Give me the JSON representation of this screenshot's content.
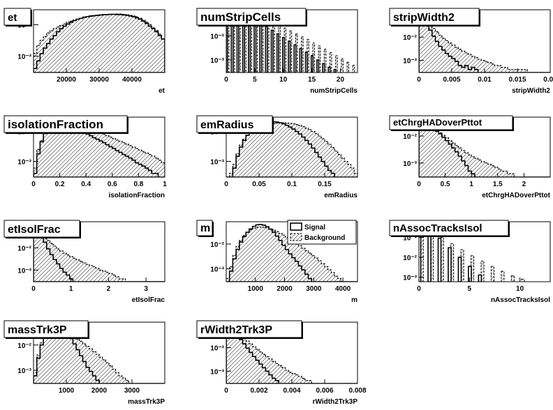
{
  "legend": {
    "signal_label": "Signal",
    "background_label": "Background"
  },
  "colors": {
    "line": "#000000",
    "fill": "#ffffff",
    "hatch": "#000000"
  },
  "chart_data": [
    {
      "type": "histogram",
      "title": "et",
      "xlabel": "et",
      "xlim": [
        10000,
        50000
      ],
      "ylim_log": [
        0.0003,
        0.03
      ],
      "log_y": true,
      "xticks": [
        20000,
        30000,
        40000
      ],
      "xtick_labels": [
        "20000",
        "30000",
        "40000"
      ],
      "yticks": [
        0.01,
        0.001
      ],
      "ytick_labels": [
        "10⁻²",
        "10⁻³"
      ],
      "bins": 40,
      "background": [
        0.0012,
        0.0022,
        0.0032,
        0.0042,
        0.0055,
        0.0065,
        0.0075,
        0.0085,
        0.0095,
        0.0105,
        0.012,
        0.013,
        0.014,
        0.015,
        0.016,
        0.017,
        0.018,
        0.0185,
        0.019,
        0.0195,
        0.02,
        0.0205,
        0.021,
        0.021,
        0.0215,
        0.022,
        0.022,
        0.0215,
        0.021,
        0.02,
        0.019,
        0.018,
        0.016,
        0.014,
        0.012,
        0.01,
        0.008,
        0.0065,
        0.005,
        0.0035
      ],
      "signal": [
        0.0004,
        0.0007,
        0.0012,
        0.0018,
        0.0025,
        0.0035,
        0.0045,
        0.006,
        0.0075,
        0.009,
        0.0105,
        0.012,
        0.0135,
        0.015,
        0.016,
        0.0175,
        0.018,
        0.019,
        0.0195,
        0.02,
        0.0205,
        0.021,
        0.021,
        0.0215,
        0.0215,
        0.021,
        0.021,
        0.0205,
        0.02,
        0.019,
        0.018,
        0.0165,
        0.015,
        0.013,
        0.011,
        0.009,
        0.0075,
        0.006,
        0.0045,
        0.0035
      ]
    },
    {
      "type": "histogram",
      "title": "numStripCells",
      "xlabel": "numStripCells",
      "xlim": [
        0,
        23
      ],
      "ylim_log": [
        0.0003,
        0.12
      ],
      "log_y": true,
      "xticks": [
        0,
        5,
        10,
        15,
        20
      ],
      "xtick_labels": [
        "0",
        "5",
        "10",
        "15",
        "20"
      ],
      "yticks": [
        0.1,
        0.01,
        0.001
      ],
      "ytick_labels": [
        "10⁻¹",
        "10⁻²",
        "10⁻³"
      ],
      "discrete": true,
      "x": [
        0,
        1,
        2,
        3,
        4,
        5,
        6,
        7,
        8,
        9,
        10,
        11,
        12,
        13,
        14,
        15,
        16,
        17,
        18,
        19,
        20,
        21,
        22
      ],
      "background": [
        0.13,
        0.12,
        0.11,
        0.1,
        0.085,
        0.07,
        0.055,
        0.045,
        0.035,
        0.027,
        0.021,
        0.016,
        0.012,
        0.009,
        0.007,
        0.005,
        0.0038,
        0.0028,
        0.002,
        0.0015,
        0.0011,
        0.0008,
        0.0006
      ],
      "signal": [
        0.13,
        0.12,
        0.1,
        0.08,
        0.06,
        0.045,
        0.033,
        0.024,
        0.017,
        0.012,
        0.0085,
        0.006,
        0.0042,
        0.003,
        0.0021,
        0.0015,
        0.001,
        0.0007,
        0.0005,
        0.0004,
        0.0003,
        0.0003,
        0.0003
      ]
    },
    {
      "type": "histogram",
      "title": "stripWidth2",
      "xlabel": "stripWidth2",
      "xlim": [
        0,
        0.02
      ],
      "ylim_log": [
        0.0003,
        0.15
      ],
      "log_y": true,
      "xticks": [
        0,
        0.005,
        0.01,
        0.015,
        0.02
      ],
      "xtick_labels": [
        "0",
        "0.005",
        "0.01",
        "0.015",
        "0.02"
      ],
      "yticks": [
        0.1,
        0.01,
        0.001
      ],
      "ytick_labels": [
        "10⁻¹",
        "10⁻²",
        "10⁻³"
      ],
      "bins": 40,
      "background": [
        0.14,
        0.09,
        0.055,
        0.035,
        0.024,
        0.017,
        0.012,
        0.009,
        0.007,
        0.0055,
        0.0045,
        0.0036,
        0.003,
        0.0025,
        0.0021,
        0.0018,
        0.0015,
        0.0013,
        0.0011,
        0.001,
        0.0009,
        0.0008,
        0.0007,
        0.0006,
        0.0006,
        0.0005,
        0.0005,
        0.0004,
        0.0004,
        0.0004,
        0.0004,
        0.0004,
        0.0004,
        0.0003,
        0.0003,
        0.0003,
        0.0003,
        0.0003,
        0.0003,
        0.0003
      ],
      "signal": [
        0.13,
        0.07,
        0.038,
        0.02,
        0.011,
        0.0065,
        0.004,
        0.0028,
        0.002,
        0.0015,
        0.0012,
        0.0009,
        0.0006,
        0.0005,
        0.0006,
        0.0004,
        0.0005,
        0.0004,
        0.0003,
        0.0003,
        0.0003,
        0.0003,
        0.0003,
        0.0003,
        0.0003,
        0.0003,
        0.0003,
        0.0003,
        0.0003,
        0.0003,
        0.0003,
        0.0003,
        0.0003,
        0.0003,
        0.0003,
        0.0003,
        0.0003,
        0.0003,
        0.0003,
        0.0003
      ]
    },
    {
      "type": "histogram",
      "title": "isolationFraction",
      "xlabel": "isolationFraction",
      "xlim": [
        0,
        1
      ],
      "ylim_log": [
        0.0003,
        0.03
      ],
      "log_y": true,
      "xticks": [
        0,
        0.2,
        0.4,
        0.6,
        0.8,
        1
      ],
      "xtick_labels": [
        "0",
        "0.2",
        "0.4",
        "0.6",
        "0.8",
        "1"
      ],
      "yticks": [
        0.01,
        0.001
      ],
      "ytick_labels": [
        "10⁻²",
        "10⁻³"
      ],
      "bins": 40,
      "background": [
        0.0006,
        0.0025,
        0.005,
        0.0085,
        0.012,
        0.015,
        0.017,
        0.018,
        0.019,
        0.019,
        0.0185,
        0.018,
        0.017,
        0.016,
        0.015,
        0.014,
        0.013,
        0.012,
        0.011,
        0.0098,
        0.0088,
        0.008,
        0.0072,
        0.0065,
        0.0058,
        0.0052,
        0.0047,
        0.0042,
        0.0038,
        0.0034,
        0.003,
        0.0027,
        0.0024,
        0.0021,
        0.0019,
        0.0017,
        0.0015,
        0.0013,
        0.0011,
        0.0009
      ],
      "signal": [
        0.0004,
        0.0018,
        0.0045,
        0.0085,
        0.013,
        0.017,
        0.02,
        0.021,
        0.021,
        0.02,
        0.019,
        0.017,
        0.015,
        0.013,
        0.011,
        0.0095,
        0.0082,
        0.0072,
        0.0062,
        0.0055,
        0.0048,
        0.0042,
        0.0036,
        0.0031,
        0.0027,
        0.0023,
        0.002,
        0.0017,
        0.0015,
        0.0013,
        0.0011,
        0.0009,
        0.0008,
        0.0007,
        0.0006,
        0.0005,
        0.0004,
        0.0004,
        0.0003,
        0.0003
      ]
    },
    {
      "type": "histogram",
      "title": "emRadius",
      "xlabel": "emRadius",
      "xlim": [
        0,
        0.2
      ],
      "ylim_log": [
        0.0003,
        0.03
      ],
      "log_y": true,
      "xticks": [
        0,
        0.05,
        0.1,
        0.15
      ],
      "xtick_labels": [
        "0",
        "0.05",
        "0.1",
        "0.15"
      ],
      "yticks": [
        0.01,
        0.001
      ],
      "ytick_labels": [
        "10⁻²",
        "10⁻³"
      ],
      "bins": 40,
      "background": [
        0.0003,
        0.0004,
        0.0008,
        0.0018,
        0.0035,
        0.0055,
        0.0075,
        0.0095,
        0.0115,
        0.013,
        0.0145,
        0.016,
        0.017,
        0.018,
        0.0185,
        0.019,
        0.0195,
        0.0195,
        0.019,
        0.0185,
        0.018,
        0.017,
        0.016,
        0.0145,
        0.013,
        0.0115,
        0.01,
        0.0085,
        0.007,
        0.0057,
        0.0046,
        0.0037,
        0.0029,
        0.0022,
        0.0017,
        0.0013,
        0.001,
        0.0008,
        0.0006,
        0.0004
      ],
      "signal": [
        0.0003,
        0.0003,
        0.0006,
        0.0015,
        0.003,
        0.005,
        0.0075,
        0.01,
        0.0125,
        0.015,
        0.017,
        0.019,
        0.02,
        0.021,
        0.021,
        0.0205,
        0.0195,
        0.018,
        0.016,
        0.014,
        0.012,
        0.01,
        0.0082,
        0.0065,
        0.005,
        0.0038,
        0.0028,
        0.002,
        0.0014,
        0.001,
        0.0007,
        0.0005,
        0.0004,
        0.0003,
        0.0003,
        0.0003,
        0.0003,
        0.0003,
        0.0003,
        0.0003
      ]
    },
    {
      "type": "histogram",
      "title": "etChrgHADoverPttot",
      "xlabel": "etChrgHADoverPttot",
      "xlim": [
        0,
        2.5
      ],
      "ylim_log": [
        0.0003,
        0.05
      ],
      "log_y": true,
      "xticks": [
        0,
        0.5,
        1,
        1.5,
        2
      ],
      "xtick_labels": [
        "0",
        "0.5",
        "1",
        "1.5",
        "2"
      ],
      "yticks": [
        0.01,
        0.001
      ],
      "ytick_labels": [
        "10⁻²",
        "10⁻³"
      ],
      "bins": 40,
      "background": [
        0.03,
        0.028,
        0.025,
        0.022,
        0.019,
        0.016,
        0.013,
        0.0105,
        0.0085,
        0.0068,
        0.0055,
        0.0044,
        0.0036,
        0.0029,
        0.0024,
        0.002,
        0.0017,
        0.0015,
        0.0013,
        0.0011,
        0.001,
        0.0009,
        0.0008,
        0.0007,
        0.0006,
        0.0005,
        0.0005,
        0.0004,
        0.0004,
        0.0003,
        0.0003,
        0.0003,
        0.0003,
        0.0003,
        0.0003,
        0.0003,
        0.0003,
        0.0003,
        0.0003,
        0.0003
      ],
      "signal": [
        0.032,
        0.03,
        0.027,
        0.023,
        0.019,
        0.015,
        0.012,
        0.009,
        0.0068,
        0.005,
        0.0036,
        0.0026,
        0.0018,
        0.0012,
        0.0008,
        0.0005,
        0.0004,
        0.0003,
        0.0003,
        0.0003,
        0.0003,
        0.0003,
        0.0003,
        0.0003,
        0.0003,
        0.0003,
        0.0003,
        0.0003,
        0.0003,
        0.0003,
        0.0003,
        0.0003,
        0.0003,
        0.0003,
        0.0003,
        0.0003,
        0.0003,
        0.0003,
        0.0003,
        0.0003
      ]
    },
    {
      "type": "histogram",
      "title": "etIsolFrac",
      "xlabel": "etIsolFrac",
      "xlim": [
        0,
        3.5
      ],
      "ylim_log": [
        0.0003,
        0.15
      ],
      "log_y": true,
      "xticks": [
        0,
        1,
        2,
        3
      ],
      "xtick_labels": [
        "0",
        "1",
        "2",
        "3"
      ],
      "yticks": [
        0.1,
        0.01,
        0.001
      ],
      "ytick_labels": [
        "10⁻¹",
        "10⁻²",
        "10⁻³"
      ],
      "bins": 40,
      "background": [
        0.12,
        0.075,
        0.048,
        0.032,
        0.022,
        0.016,
        0.012,
        0.009,
        0.0072,
        0.0058,
        0.0048,
        0.004,
        0.0034,
        0.0029,
        0.0025,
        0.0021,
        0.0018,
        0.0016,
        0.0014,
        0.0012,
        0.001,
        0.0009,
        0.0008,
        0.0007,
        0.0006,
        0.0005,
        0.0004,
        0.0004,
        0.0003,
        0.0003,
        0.0003,
        0.0003,
        0.0003,
        0.0003,
        0.0003,
        0.0003,
        0.0003,
        0.0003,
        0.0003,
        0.0003
      ],
      "signal": [
        0.13,
        0.07,
        0.035,
        0.018,
        0.009,
        0.005,
        0.003,
        0.0019,
        0.0012,
        0.0008,
        0.0006,
        0.0004,
        0.0003,
        0.0003,
        0.0003,
        0.0003,
        0.0003,
        0.0003,
        0.0003,
        0.0003,
        0.0003,
        0.0003,
        0.0003,
        0.0003,
        0.0003,
        0.0003,
        0.0003,
        0.0003,
        0.0003,
        0.0003,
        0.0003,
        0.0003,
        0.0003,
        0.0003,
        0.0003,
        0.0003,
        0.0003,
        0.0003,
        0.0003,
        0.0003
      ]
    },
    {
      "type": "histogram",
      "title": "m",
      "xlabel": "m",
      "xlim": [
        0,
        4500
      ],
      "ylim_log": [
        0.0003,
        0.08
      ],
      "log_y": true,
      "xticks": [
        1000,
        2000,
        3000,
        4000
      ],
      "xtick_labels": [
        "1000",
        "2000",
        "3000",
        "4000"
      ],
      "yticks": [
        0.01,
        0.001
      ],
      "ytick_labels": [
        "10⁻²",
        "10⁻³"
      ],
      "bins": 40,
      "legend": "top-right",
      "background": [
        0.0004,
        0.0012,
        0.0035,
        0.008,
        0.014,
        0.022,
        0.03,
        0.038,
        0.044,
        0.048,
        0.049,
        0.048,
        0.045,
        0.041,
        0.037,
        0.032,
        0.027,
        0.023,
        0.019,
        0.016,
        0.013,
        0.0105,
        0.0085,
        0.0068,
        0.0054,
        0.0043,
        0.0034,
        0.0027,
        0.0021,
        0.0016,
        0.0012,
        0.0009,
        0.0007,
        0.0005,
        0.0004,
        0.0003,
        0.0003,
        0.0003,
        0.0003,
        0.0003
      ],
      "signal": [
        0.0003,
        0.0008,
        0.0025,
        0.006,
        0.012,
        0.02,
        0.03,
        0.041,
        0.052,
        0.06,
        0.062,
        0.058,
        0.05,
        0.04,
        0.03,
        0.021,
        0.014,
        0.009,
        0.006,
        0.004,
        0.0028,
        0.002,
        0.0013,
        0.0009,
        0.0006,
        0.0004,
        0.0003,
        0.0003,
        0.0003,
        0.0003,
        0.0003,
        0.0003,
        0.0003,
        0.0003,
        0.0003,
        0.0003,
        0.0003,
        0.0003,
        0.0003,
        0.0003
      ]
    },
    {
      "type": "histogram",
      "title": "nAssocTracksIsol",
      "xlabel": "nAssocTracksIsol",
      "xlim": [
        0,
        13
      ],
      "ylim_log": [
        0.0006,
        0.6
      ],
      "log_y": true,
      "xticks": [
        0,
        5,
        10
      ],
      "xtick_labels": [
        "0",
        "5",
        "10"
      ],
      "yticks": [
        0.1,
        0.01,
        0.001
      ],
      "ytick_labels": [
        "10⁻¹",
        "10⁻²",
        "10⁻³"
      ],
      "discrete": true,
      "x": [
        0,
        1,
        2,
        3,
        4,
        5,
        6,
        7,
        8,
        9,
        10,
        11,
        12
      ],
      "background": [
        0.5,
        0.22,
        0.1,
        0.048,
        0.024,
        0.012,
        0.0065,
        0.0035,
        0.002,
        0.0012,
        0.0008,
        0.0006,
        0.0006
      ],
      "signal": [
        0.6,
        0.26,
        0.09,
        0.03,
        0.01,
        0.0035,
        0.0013,
        0.0006,
        0.0006,
        0.0006,
        0.0006,
        0.0006,
        0.0006
      ]
    },
    {
      "type": "histogram",
      "title": "massTrk3P",
      "xlabel": "massTrk3P",
      "xlim": [
        0,
        4000
      ],
      "ylim_log": [
        0.0003,
        0.08
      ],
      "log_y": true,
      "xticks": [
        1000,
        2000,
        3000
      ],
      "xtick_labels": [
        "1000",
        "2000",
        "3000"
      ],
      "yticks": [
        0.01,
        0.001
      ],
      "ytick_labels": [
        "10⁻²",
        "10⁻³"
      ],
      "bins": 40,
      "background": [
        0.0008,
        0.004,
        0.012,
        0.024,
        0.034,
        0.04,
        0.042,
        0.041,
        0.038,
        0.034,
        0.029,
        0.025,
        0.021,
        0.017,
        0.014,
        0.011,
        0.0088,
        0.007,
        0.0055,
        0.0043,
        0.0033,
        0.0026,
        0.002,
        0.0015,
        0.0011,
        0.0008,
        0.0006,
        0.0005,
        0.0004,
        0.0003,
        0.0003,
        0.0003,
        0.0003,
        0.0003,
        0.0003,
        0.0003,
        0.0003,
        0.0003,
        0.0003,
        0.0003
      ],
      "signal": [
        0.0006,
        0.003,
        0.01,
        0.022,
        0.036,
        0.048,
        0.055,
        0.056,
        0.05,
        0.04,
        0.028,
        0.018,
        0.011,
        0.0065,
        0.0038,
        0.0022,
        0.0013,
        0.0009,
        0.0006,
        0.0004,
        0.0003,
        0.0003,
        0.0003,
        0.0003,
        0.0003,
        0.0003,
        0.0003,
        0.0003,
        0.0003,
        0.0003,
        0.0003,
        0.0003,
        0.0003,
        0.0003,
        0.0003,
        0.0003,
        0.0003,
        0.0003,
        0.0003,
        0.0003
      ]
    },
    {
      "type": "histogram",
      "title": "rWidth2Trk3P",
      "xlabel": "rWidth2Trk3P",
      "xlim": [
        0,
        0.008
      ],
      "ylim_log": [
        0.0003,
        0.12
      ],
      "log_y": true,
      "xticks": [
        0,
        0.002,
        0.004,
        0.006,
        0.008
      ],
      "xtick_labels": [
        "0",
        "0.002",
        "0.004",
        "0.006",
        "0.008"
      ],
      "yticks": [
        0.1,
        0.01,
        0.001
      ],
      "ytick_labels": [
        "10⁻¹",
        "10⁻²",
        "10⁻³"
      ],
      "bins": 40,
      "background": [
        0.11,
        0.08,
        0.058,
        0.043,
        0.033,
        0.025,
        0.019,
        0.0145,
        0.011,
        0.0085,
        0.0066,
        0.0052,
        0.0041,
        0.0033,
        0.0026,
        0.0021,
        0.0017,
        0.0014,
        0.0011,
        0.0009,
        0.0008,
        0.0007,
        0.0006,
        0.0005,
        0.0004,
        0.0004,
        0.0003,
        0.0003,
        0.0003,
        0.0003,
        0.0003,
        0.0003,
        0.0003,
        0.0003,
        0.0003,
        0.0003,
        0.0003,
        0.0003,
        0.0003,
        0.0003
      ],
      "signal": [
        0.12,
        0.08,
        0.052,
        0.034,
        0.022,
        0.0145,
        0.0095,
        0.0063,
        0.0042,
        0.0029,
        0.002,
        0.0014,
        0.001,
        0.0007,
        0.0005,
        0.0004,
        0.0003,
        0.0003,
        0.0003,
        0.0003,
        0.0003,
        0.0003,
        0.0003,
        0.0003,
        0.0003,
        0.0003,
        0.0003,
        0.0003,
        0.0003,
        0.0003,
        0.0003,
        0.0003,
        0.0003,
        0.0003,
        0.0003,
        0.0003,
        0.0003,
        0.0003,
        0.0003,
        0.0003
      ]
    }
  ]
}
